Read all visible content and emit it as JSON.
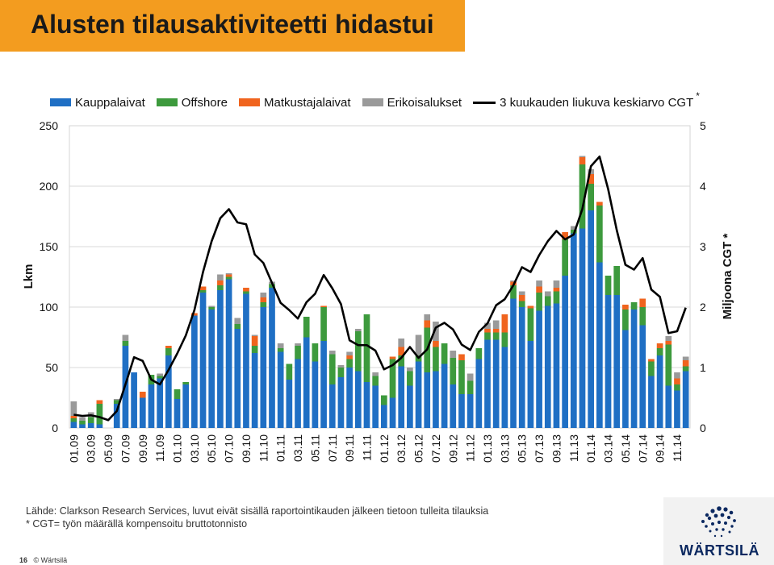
{
  "slide": {
    "title": "Alusten tilausaktiviteetti hidastui",
    "footer_line1": "Lähde: Clarkson Research Services, luvut eivät sisällä raportointikauden jälkeen tietoon tulleita tilauksia",
    "footer_line2": "* CGT= työn määrällä kompensoitu bruttotonnisto",
    "page_number": "16",
    "copyright": "© Wärtsilä",
    "logo_text": "WÄRTSILÄ"
  },
  "legend": {
    "s1": "Kauppalaivat",
    "s2": "Offshore",
    "s3": "Matkustajalaivat",
    "s4": "Erikoisalukset",
    "s5": "3 kuukauden liukuva keskiarvo CGT",
    "star": "*"
  },
  "colors": {
    "Kauppalaivat": "#1f6fc4",
    "Offshore": "#3d9a3d",
    "Matkustajalaivat": "#f0641e",
    "Erikoisalukset": "#9a9a9a",
    "line": "#000000",
    "title_bar": "#f39c1f"
  },
  "chart_data": {
    "type": "bar",
    "stacked": true,
    "ylabel": "Lkm",
    "y2label": "Miljoona CGT *",
    "ylim": [
      0,
      250
    ],
    "y2lim": [
      0,
      5
    ],
    "yticks": [
      "0",
      "50",
      "100",
      "150",
      "200",
      "250"
    ],
    "y2ticks": [
      "0",
      "1",
      "2",
      "3",
      "4",
      "5"
    ],
    "categories": [
      "01.09",
      "02.09",
      "03.09",
      "04.09",
      "05.09",
      "06.09",
      "07.09",
      "08.09",
      "09.09",
      "10.09",
      "11.09",
      "12.09",
      "01.10",
      "02.10",
      "03.10",
      "04.10",
      "05.10",
      "06.10",
      "07.10",
      "08.10",
      "09.10",
      "10.10",
      "11.10",
      "12.10",
      "01.11",
      "02.11",
      "03.11",
      "04.11",
      "05.11",
      "06.11",
      "07.11",
      "08.11",
      "09.11",
      "10.11",
      "11.11",
      "12.11",
      "01.12",
      "02.12",
      "03.12",
      "04.12",
      "05.12",
      "06.12",
      "07.12",
      "08.12",
      "09.12",
      "10.12",
      "11.12",
      "12.12",
      "01.13",
      "02.13",
      "03.13",
      "04.13",
      "05.13",
      "06.13",
      "07.13",
      "08.13",
      "09.13",
      "10.13",
      "11.13",
      "12.13",
      "01.14",
      "02.14",
      "03.14",
      "04.14",
      "05.14",
      "06.14",
      "07.14",
      "08.14",
      "09.14",
      "10.14",
      "11.14",
      "12.14"
    ],
    "tick_labels": [
      "01.09",
      "03.09",
      "05.09",
      "07.09",
      "09.09",
      "11.09",
      "01.10",
      "03.10",
      "05.10",
      "07.10",
      "09.10",
      "11.10",
      "01.11",
      "03.11",
      "05.11",
      "07.11",
      "09.11",
      "11.11",
      "01.12",
      "03.12",
      "05.12",
      "07.12",
      "09.12",
      "11.12",
      "01.13",
      "03.13",
      "05.13",
      "07.13",
      "09.13",
      "11.13",
      "01.14",
      "03.14",
      "05.14",
      "07.14",
      "09.14",
      "11.14"
    ],
    "series": [
      {
        "name": "Kauppalaivat",
        "values": [
          5,
          3,
          4,
          3,
          0,
          20,
          68,
          46,
          25,
          36,
          41,
          60,
          24,
          36,
          93,
          112,
          98,
          114,
          123,
          82,
          111,
          62,
          100,
          116,
          63,
          40,
          57,
          75,
          55,
          72,
          36,
          42,
          50,
          47,
          38,
          35,
          19,
          25,
          51,
          35,
          55,
          46,
          47,
          53,
          36,
          28,
          28,
          57,
          73,
          73,
          67,
          107,
          100,
          72,
          97,
          101,
          103,
          126,
          161,
          165,
          180,
          137,
          110,
          110,
          81,
          98,
          85,
          43,
          60,
          35,
          31,
          47
        ]
      },
      {
        "name": "Offshore",
        "values": [
          3,
          3,
          5,
          17,
          0,
          3,
          4,
          0,
          0,
          8,
          2,
          6,
          8,
          2,
          0,
          2,
          2,
          4,
          2,
          4,
          2,
          6,
          4,
          3,
          3,
          13,
          11,
          17,
          15,
          28,
          25,
          8,
          7,
          33,
          56,
          8,
          8,
          32,
          9,
          12,
          5,
          37,
          20,
          17,
          22,
          28,
          11,
          9,
          6,
          6,
          12,
          11,
          5,
          27,
          15,
          8,
          10,
          30,
          3,
          53,
          22,
          47,
          16,
          24,
          17,
          6,
          15,
          12,
          6,
          34,
          5,
          4
        ]
      },
      {
        "name": "Matkustajalaivat",
        "values": [
          2,
          0,
          0,
          3,
          0,
          0,
          0,
          0,
          5,
          0,
          0,
          2,
          0,
          0,
          2,
          3,
          0,
          4,
          2,
          0,
          3,
          8,
          4,
          0,
          0,
          0,
          0,
          0,
          0,
          1,
          0,
          0,
          3,
          0,
          0,
          0,
          0,
          2,
          7,
          0,
          0,
          6,
          5,
          0,
          0,
          5,
          0,
          0,
          3,
          3,
          15,
          3,
          5,
          2,
          5,
          0,
          3,
          6,
          0,
          6,
          8,
          3,
          0,
          0,
          4,
          0,
          7,
          2,
          4,
          3,
          5,
          5
        ]
      },
      {
        "name": "Erikoisalukset",
        "values": [
          12,
          3,
          4,
          0,
          0,
          1,
          5,
          0,
          0,
          0,
          2,
          0,
          0,
          0,
          0,
          0,
          1,
          5,
          1,
          5,
          0,
          1,
          4,
          2,
          4,
          0,
          2,
          0,
          0,
          0,
          3,
          2,
          3,
          2,
          0,
          3,
          0,
          0,
          7,
          3,
          17,
          5,
          16,
          0,
          6,
          0,
          6,
          0,
          5,
          7,
          0,
          1,
          3,
          0,
          5,
          4,
          6,
          0,
          3,
          1,
          4,
          0,
          0,
          0,
          0,
          0,
          0,
          0,
          0,
          4,
          5,
          3
        ]
      },
      {
        "name": "3 kuukauden liukuva keskiarvo CGT",
        "axis": "right",
        "type": "line",
        "values": [
          0.22,
          0.2,
          0.21,
          0.18,
          0.13,
          0.28,
          0.72,
          1.17,
          1.11,
          0.8,
          0.72,
          0.96,
          1.23,
          1.53,
          1.95,
          2.58,
          3.09,
          3.47,
          3.62,
          3.4,
          3.37,
          2.87,
          2.73,
          2.4,
          2.07,
          1.95,
          1.81,
          2.08,
          2.22,
          2.53,
          2.31,
          2.05,
          1.45,
          1.37,
          1.37,
          1.28,
          0.97,
          1.04,
          1.16,
          1.34,
          1.16,
          1.3,
          1.66,
          1.74,
          1.63,
          1.38,
          1.29,
          1.59,
          1.73,
          2.03,
          2.13,
          2.36,
          2.66,
          2.58,
          2.86,
          3.09,
          3.26,
          3.12,
          3.2,
          3.62,
          4.33,
          4.49,
          3.95,
          3.27,
          2.7,
          2.62,
          2.81,
          2.29,
          2.17,
          1.57,
          1.6,
          1.99
        ]
      }
    ]
  }
}
